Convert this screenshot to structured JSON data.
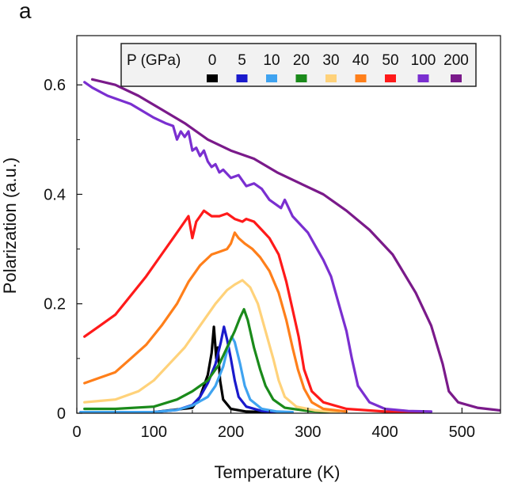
{
  "panel_label": "a",
  "chart_data": {
    "type": "line",
    "title": "",
    "xlabel": "Temperature (K)",
    "ylabel": "Polarization (a.u.)",
    "xlim": [
      0,
      550
    ],
    "ylim": [
      0,
      0.69
    ],
    "xticks": [
      0,
      100,
      200,
      300,
      400,
      500
    ],
    "xtick_labels": [
      "0",
      "100",
      "200",
      "300",
      "400",
      "500"
    ],
    "yticks": [
      0,
      0.2,
      0.4,
      0.6
    ],
    "ytick_labels": [
      "0",
      "0.2",
      "0.4",
      "0.6"
    ],
    "grid": false,
    "legend": {
      "placement": "top-right",
      "title": "P (GPa)"
    },
    "series": [
      {
        "name": "0",
        "color": "#000000",
        "points": [
          [
            5,
            0.002
          ],
          [
            100,
            0.002
          ],
          [
            150,
            0.01
          ],
          [
            160,
            0.03
          ],
          [
            170,
            0.07
          ],
          [
            175,
            0.11
          ],
          [
            178,
            0.158
          ],
          [
            181,
            0.1
          ],
          [
            183,
            0.12
          ],
          [
            186,
            0.06
          ],
          [
            190,
            0.025
          ],
          [
            200,
            0.008
          ],
          [
            220,
            0.003
          ],
          [
            250,
            0.002
          ]
        ]
      },
      {
        "name": "5",
        "color": "#1a1acc",
        "points": [
          [
            5,
            0.002
          ],
          [
            100,
            0.002
          ],
          [
            130,
            0.006
          ],
          [
            150,
            0.015
          ],
          [
            160,
            0.03
          ],
          [
            170,
            0.055
          ],
          [
            180,
            0.09
          ],
          [
            187,
            0.13
          ],
          [
            191,
            0.158
          ],
          [
            195,
            0.135
          ],
          [
            200,
            0.1
          ],
          [
            205,
            0.06
          ],
          [
            210,
            0.03
          ],
          [
            220,
            0.012
          ],
          [
            240,
            0.004
          ],
          [
            260,
            0.002
          ]
        ]
      },
      {
        "name": "10",
        "color": "#3fa3f0",
        "points": [
          [
            5,
            0.002
          ],
          [
            100,
            0.002
          ],
          [
            130,
            0.006
          ],
          [
            150,
            0.014
          ],
          [
            170,
            0.03
          ],
          [
            180,
            0.05
          ],
          [
            190,
            0.085
          ],
          [
            196,
            0.12
          ],
          [
            201,
            0.14
          ],
          [
            205,
            0.13
          ],
          [
            212,
            0.09
          ],
          [
            218,
            0.05
          ],
          [
            225,
            0.025
          ],
          [
            240,
            0.008
          ],
          [
            260,
            0.003
          ],
          [
            280,
            0.002
          ]
        ]
      },
      {
        "name": "20",
        "color": "#1a8a1a",
        "points": [
          [
            10,
            0.008
          ],
          [
            50,
            0.008
          ],
          [
            100,
            0.012
          ],
          [
            130,
            0.025
          ],
          [
            150,
            0.04
          ],
          [
            170,
            0.06
          ],
          [
            185,
            0.09
          ],
          [
            195,
            0.12
          ],
          [
            205,
            0.15
          ],
          [
            212,
            0.175
          ],
          [
            217,
            0.19
          ],
          [
            222,
            0.17
          ],
          [
            230,
            0.12
          ],
          [
            238,
            0.08
          ],
          [
            245,
            0.05
          ],
          [
            255,
            0.025
          ],
          [
            270,
            0.01
          ],
          [
            300,
            0.004
          ],
          [
            330,
            0.002
          ]
        ]
      },
      {
        "name": "30",
        "color": "#ffd27a",
        "points": [
          [
            10,
            0.02
          ],
          [
            50,
            0.025
          ],
          [
            80,
            0.04
          ],
          [
            100,
            0.06
          ],
          [
            120,
            0.09
          ],
          [
            140,
            0.12
          ],
          [
            160,
            0.16
          ],
          [
            180,
            0.2
          ],
          [
            195,
            0.225
          ],
          [
            205,
            0.235
          ],
          [
            215,
            0.243
          ],
          [
            225,
            0.23
          ],
          [
            235,
            0.2
          ],
          [
            245,
            0.15
          ],
          [
            255,
            0.1
          ],
          [
            262,
            0.06
          ],
          [
            270,
            0.03
          ],
          [
            285,
            0.012
          ],
          [
            310,
            0.005
          ],
          [
            340,
            0.002
          ]
        ]
      },
      {
        "name": "40",
        "color": "#ff7f1a",
        "points": [
          [
            10,
            0.055
          ],
          [
            50,
            0.075
          ],
          [
            70,
            0.1
          ],
          [
            90,
            0.125
          ],
          [
            110,
            0.16
          ],
          [
            130,
            0.2
          ],
          [
            145,
            0.24
          ],
          [
            160,
            0.27
          ],
          [
            175,
            0.29
          ],
          [
            185,
            0.295
          ],
          [
            195,
            0.3
          ],
          [
            200,
            0.31
          ],
          [
            205,
            0.33
          ],
          [
            210,
            0.32
          ],
          [
            218,
            0.31
          ],
          [
            228,
            0.3
          ],
          [
            238,
            0.285
          ],
          [
            250,
            0.26
          ],
          [
            262,
            0.22
          ],
          [
            272,
            0.17
          ],
          [
            280,
            0.12
          ],
          [
            287,
            0.08
          ],
          [
            295,
            0.045
          ],
          [
            305,
            0.02
          ],
          [
            320,
            0.008
          ],
          [
            350,
            0.003
          ]
        ]
      },
      {
        "name": "50",
        "color": "#ff1a1a",
        "points": [
          [
            10,
            0.14
          ],
          [
            30,
            0.16
          ],
          [
            50,
            0.18
          ],
          [
            70,
            0.215
          ],
          [
            90,
            0.25
          ],
          [
            110,
            0.29
          ],
          [
            125,
            0.32
          ],
          [
            135,
            0.34
          ],
          [
            145,
            0.36
          ],
          [
            150,
            0.32
          ],
          [
            155,
            0.35
          ],
          [
            165,
            0.37
          ],
          [
            175,
            0.36
          ],
          [
            185,
            0.36
          ],
          [
            195,
            0.365
          ],
          [
            205,
            0.355
          ],
          [
            215,
            0.35
          ],
          [
            220,
            0.355
          ],
          [
            230,
            0.35
          ],
          [
            240,
            0.335
          ],
          [
            250,
            0.32
          ],
          [
            262,
            0.29
          ],
          [
            272,
            0.24
          ],
          [
            280,
            0.19
          ],
          [
            288,
            0.14
          ],
          [
            295,
            0.08
          ],
          [
            305,
            0.04
          ],
          [
            320,
            0.02
          ],
          [
            350,
            0.008
          ],
          [
            400,
            0.003
          ],
          [
            450,
            0.002
          ]
        ]
      },
      {
        "name": "100",
        "color": "#7a2fd0",
        "points": [
          [
            10,
            0.605
          ],
          [
            20,
            0.595
          ],
          [
            40,
            0.58
          ],
          [
            70,
            0.565
          ],
          [
            100,
            0.54
          ],
          [
            115,
            0.53
          ],
          [
            125,
            0.525
          ],
          [
            130,
            0.5
          ],
          [
            135,
            0.515
          ],
          [
            140,
            0.505
          ],
          [
            145,
            0.515
          ],
          [
            150,
            0.48
          ],
          [
            155,
            0.485
          ],
          [
            160,
            0.47
          ],
          [
            165,
            0.48
          ],
          [
            170,
            0.46
          ],
          [
            175,
            0.45
          ],
          [
            180,
            0.455
          ],
          [
            185,
            0.44
          ],
          [
            190,
            0.445
          ],
          [
            200,
            0.43
          ],
          [
            210,
            0.435
          ],
          [
            220,
            0.415
          ],
          [
            230,
            0.42
          ],
          [
            240,
            0.41
          ],
          [
            250,
            0.39
          ],
          [
            260,
            0.38
          ],
          [
            265,
            0.375
          ],
          [
            270,
            0.39
          ],
          [
            280,
            0.36
          ],
          [
            290,
            0.345
          ],
          [
            300,
            0.33
          ],
          [
            310,
            0.305
          ],
          [
            320,
            0.28
          ],
          [
            330,
            0.25
          ],
          [
            340,
            0.2
          ],
          [
            350,
            0.15
          ],
          [
            357,
            0.1
          ],
          [
            365,
            0.05
          ],
          [
            380,
            0.02
          ],
          [
            400,
            0.008
          ],
          [
            430,
            0.004
          ],
          [
            460,
            0.003
          ]
        ]
      },
      {
        "name": "200",
        "color": "#7a1a8a",
        "points": [
          [
            20,
            0.61
          ],
          [
            50,
            0.6
          ],
          [
            80,
            0.58
          ],
          [
            110,
            0.555
          ],
          [
            140,
            0.53
          ],
          [
            170,
            0.5
          ],
          [
            200,
            0.48
          ],
          [
            230,
            0.465
          ],
          [
            260,
            0.44
          ],
          [
            290,
            0.42
          ],
          [
            320,
            0.4
          ],
          [
            350,
            0.37
          ],
          [
            380,
            0.335
          ],
          [
            410,
            0.29
          ],
          [
            440,
            0.22
          ],
          [
            460,
            0.16
          ],
          [
            475,
            0.09
          ],
          [
            483,
            0.04
          ],
          [
            495,
            0.02
          ],
          [
            520,
            0.01
          ],
          [
            550,
            0.005
          ]
        ]
      }
    ]
  }
}
